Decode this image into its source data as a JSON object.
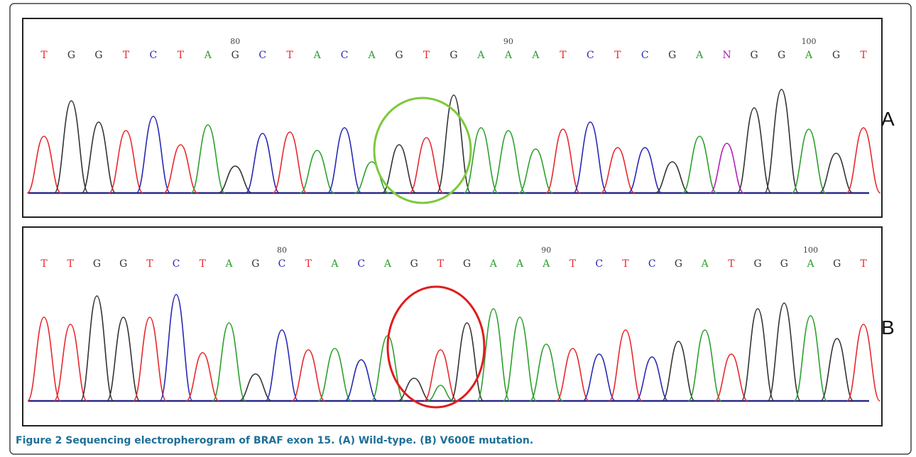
{
  "figure": {
    "caption_number": "Figure 2",
    "caption_text": "Sequencing electropherogram of BRAF exon 15. (A) Wild-type. (B) V600E mutation.",
    "colors": {
      "A": "#2ca02c",
      "C": "#2828b4",
      "G": "#333333",
      "T": "#e8282c",
      "N": "#b41eb4",
      "accent_circle_wildtype": "#7dc83c",
      "accent_circle_mutation": "#e01c1c",
      "caption": "#1e6f97"
    },
    "panels": [
      {
        "label": "A",
        "base_calls": [
          "T",
          "G",
          "G",
          "T",
          "C",
          "T",
          "A",
          "G",
          "C",
          "T",
          "A",
          "C",
          "A",
          "G",
          "T",
          "G",
          "A",
          "A",
          "A",
          "T",
          "C",
          "T",
          "C",
          "G",
          "A",
          "N",
          "G",
          "G",
          "A",
          "G",
          "T"
        ],
        "position_markers": [
          "80",
          "90",
          "100"
        ],
        "highlight": "wildtype"
      },
      {
        "label": "B",
        "base_calls": [
          "T",
          "T",
          "G",
          "G",
          "T",
          "C",
          "T",
          "A",
          "G",
          "C",
          "T",
          "A",
          "C",
          "A",
          "G",
          "T",
          "G",
          "A",
          "A",
          "A",
          "T",
          "C",
          "T",
          "C",
          "G",
          "A",
          "T",
          "G",
          "G",
          "A",
          "G",
          "T"
        ],
        "position_markers": [
          "80",
          "90",
          "100"
        ],
        "highlight": "mutation"
      }
    ]
  }
}
